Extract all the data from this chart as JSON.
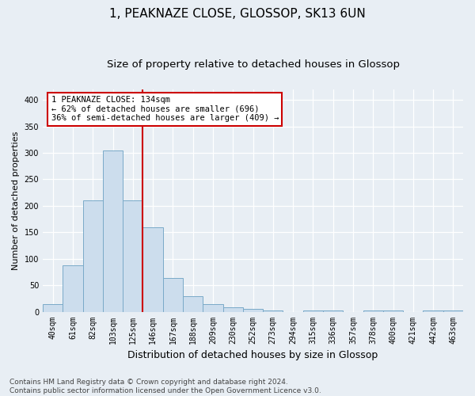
{
  "title": "1, PEAKNAZE CLOSE, GLOSSOP, SK13 6UN",
  "subtitle": "Size of property relative to detached houses in Glossop",
  "xlabel": "Distribution of detached houses by size in Glossop",
  "ylabel": "Number of detached properties",
  "bar_labels": [
    "40sqm",
    "61sqm",
    "82sqm",
    "103sqm",
    "125sqm",
    "146sqm",
    "167sqm",
    "188sqm",
    "209sqm",
    "230sqm",
    "252sqm",
    "273sqm",
    "294sqm",
    "315sqm",
    "336sqm",
    "357sqm",
    "378sqm",
    "400sqm",
    "421sqm",
    "442sqm",
    "463sqm"
  ],
  "bar_values": [
    14,
    88,
    210,
    305,
    210,
    160,
    63,
    30,
    15,
    8,
    5,
    2,
    0,
    2,
    2,
    0,
    3,
    2,
    0,
    3,
    2
  ],
  "bar_color": "#ccdded",
  "bar_edge_color": "#7aaac8",
  "vline_x": 4.5,
  "vline_color": "#cc0000",
  "annotation_text": "1 PEAKNAZE CLOSE: 134sqm\n← 62% of detached houses are smaller (696)\n36% of semi-detached houses are larger (409) →",
  "annotation_box_color": "#ffffff",
  "annotation_box_edge": "#cc0000",
  "ylim": [
    0,
    420
  ],
  "yticks": [
    0,
    50,
    100,
    150,
    200,
    250,
    300,
    350,
    400
  ],
  "footnote": "Contains HM Land Registry data © Crown copyright and database right 2024.\nContains public sector information licensed under the Open Government Licence v3.0.",
  "background_color": "#e8eef4",
  "grid_color": "#ffffff",
  "title_fontsize": 11,
  "subtitle_fontsize": 9.5,
  "xlabel_fontsize": 9,
  "ylabel_fontsize": 8,
  "footnote_fontsize": 6.5,
  "tick_fontsize": 7
}
